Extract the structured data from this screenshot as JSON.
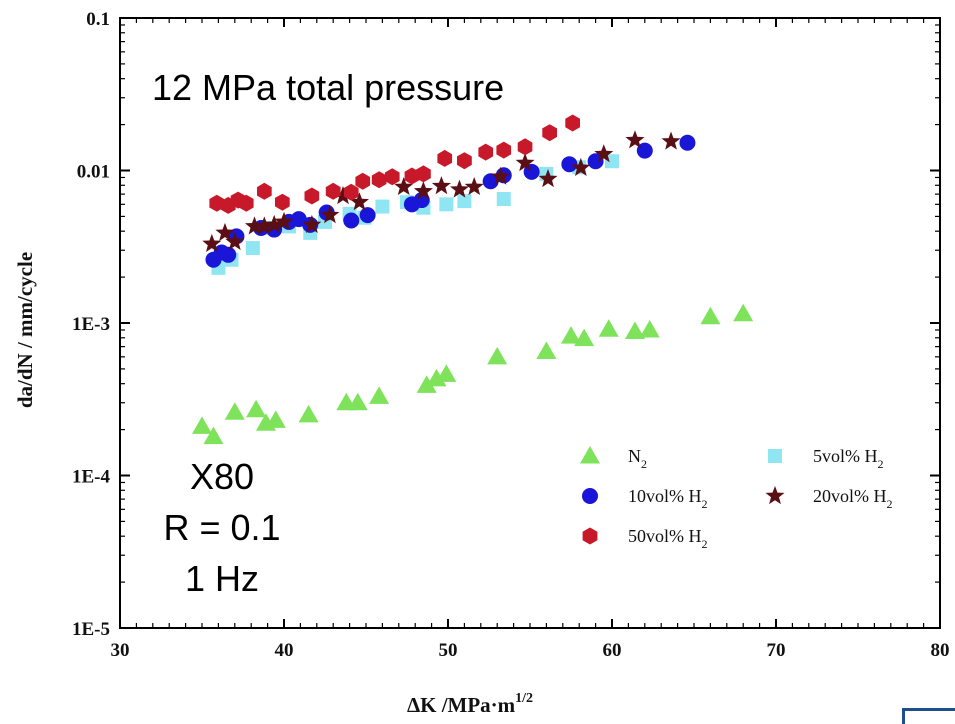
{
  "chart_data": {
    "type": "scatter",
    "title": "",
    "xlabel": "ΔK /MPa·m",
    "xlabel_superscript": "1/2",
    "ylabel": "da/dN / mm/cycle",
    "xlim": [
      30,
      80
    ],
    "ylim": [
      1e-05,
      0.1
    ],
    "y_scale": "log",
    "grid": false,
    "x_ticks": [
      30,
      40,
      50,
      60,
      70,
      80
    ],
    "x_tick_labels": [
      "30",
      "40",
      "50",
      "60",
      "70",
      "80"
    ],
    "y_ticks": [
      1e-05,
      0.0001,
      0.001,
      0.01,
      0.1
    ],
    "y_tick_labels": [
      "1E-5",
      "1E-4",
      "1E-3",
      "0.01",
      "0.1"
    ],
    "legend_position": "lower-right",
    "annotations": [
      "12 MPa total pressure",
      "X80",
      "R = 0.1",
      "1 Hz"
    ],
    "series": [
      {
        "name": "N",
        "name_subscript": "2",
        "marker": "triangle",
        "color": "#7ee35a",
        "x": [
          35.0,
          35.7,
          37.0,
          38.3,
          38.9,
          39.5,
          41.5,
          43.8,
          44.5,
          45.8,
          48.7,
          49.3,
          49.9,
          53.0,
          56.0,
          57.5,
          58.3,
          59.8,
          61.4,
          62.3,
          66.0,
          68.0
        ],
        "y": [
          0.00021,
          0.00018,
          0.00026,
          0.00027,
          0.00022,
          0.00023,
          0.00025,
          0.0003,
          0.0003,
          0.00033,
          0.00039,
          0.00043,
          0.00046,
          0.0006,
          0.00065,
          0.00082,
          0.00079,
          0.00091,
          0.00088,
          0.0009,
          0.0011,
          0.00115
        ]
      },
      {
        "name": "5vol% H",
        "name_subscript": "2",
        "marker": "square",
        "color": "#8fe6f2",
        "x": [
          36.0,
          36.3,
          36.8,
          38.1,
          38.8,
          40.3,
          41.6,
          42.5,
          44.0,
          44.9,
          46.0,
          47.5,
          48.5,
          49.9,
          51.0,
          53.4,
          56.0,
          58.0,
          60.0
        ],
        "y": [
          0.0023,
          0.0027,
          0.0026,
          0.0031,
          0.0042,
          0.0043,
          0.0039,
          0.0046,
          0.0052,
          0.0049,
          0.0058,
          0.0062,
          0.0057,
          0.006,
          0.0063,
          0.0065,
          0.0095,
          0.0105,
          0.0115
        ]
      },
      {
        "name": "10vol% H",
        "name_subscript": "2",
        "marker": "circle",
        "color": "#1a16d8",
        "x": [
          35.7,
          36.2,
          36.6,
          37.1,
          38.6,
          39.4,
          40.3,
          40.9,
          41.6,
          42.6,
          44.1,
          45.1,
          47.8,
          48.4,
          52.6,
          53.4,
          55.1,
          57.4,
          59.0,
          62.0,
          64.6
        ],
        "y": [
          0.0026,
          0.0029,
          0.0028,
          0.0037,
          0.0042,
          0.0041,
          0.0046,
          0.0048,
          0.0044,
          0.0053,
          0.0047,
          0.0051,
          0.006,
          0.0064,
          0.0085,
          0.0093,
          0.0098,
          0.011,
          0.0115,
          0.0135,
          0.0152
        ]
      },
      {
        "name": "20vol% H",
        "name_subscript": "2",
        "marker": "star",
        "color": "#5a0f14",
        "x": [
          35.6,
          36.4,
          37.0,
          38.2,
          38.8,
          39.4,
          40.0,
          41.7,
          42.8,
          43.6,
          44.6,
          47.3,
          48.5,
          49.6,
          50.7,
          51.6,
          53.2,
          54.7,
          56.1,
          58.1,
          59.5,
          61.4,
          63.6
        ],
        "y": [
          0.0033,
          0.0039,
          0.0034,
          0.0043,
          0.0043,
          0.0044,
          0.0046,
          0.0044,
          0.0051,
          0.0068,
          0.0062,
          0.0078,
          0.0073,
          0.0079,
          0.0075,
          0.0078,
          0.0091,
          0.0112,
          0.0088,
          0.0104,
          0.0128,
          0.0158,
          0.0155
        ]
      },
      {
        "name": "50vol% H",
        "name_subscript": "2",
        "marker": "hexagon",
        "color": "#c8192a",
        "x": [
          35.9,
          36.6,
          37.2,
          37.7,
          38.8,
          39.9,
          41.7,
          43.0,
          44.1,
          44.8,
          45.8,
          46.6,
          47.8,
          48.5,
          49.8,
          51.0,
          52.3,
          53.4,
          54.7,
          56.2,
          57.6
        ],
        "y": [
          0.0061,
          0.0059,
          0.0064,
          0.0061,
          0.0073,
          0.0062,
          0.0068,
          0.0073,
          0.0072,
          0.0085,
          0.0087,
          0.0091,
          0.0092,
          0.0095,
          0.012,
          0.0116,
          0.0132,
          0.0136,
          0.0143,
          0.0177,
          0.0205
        ]
      }
    ]
  }
}
